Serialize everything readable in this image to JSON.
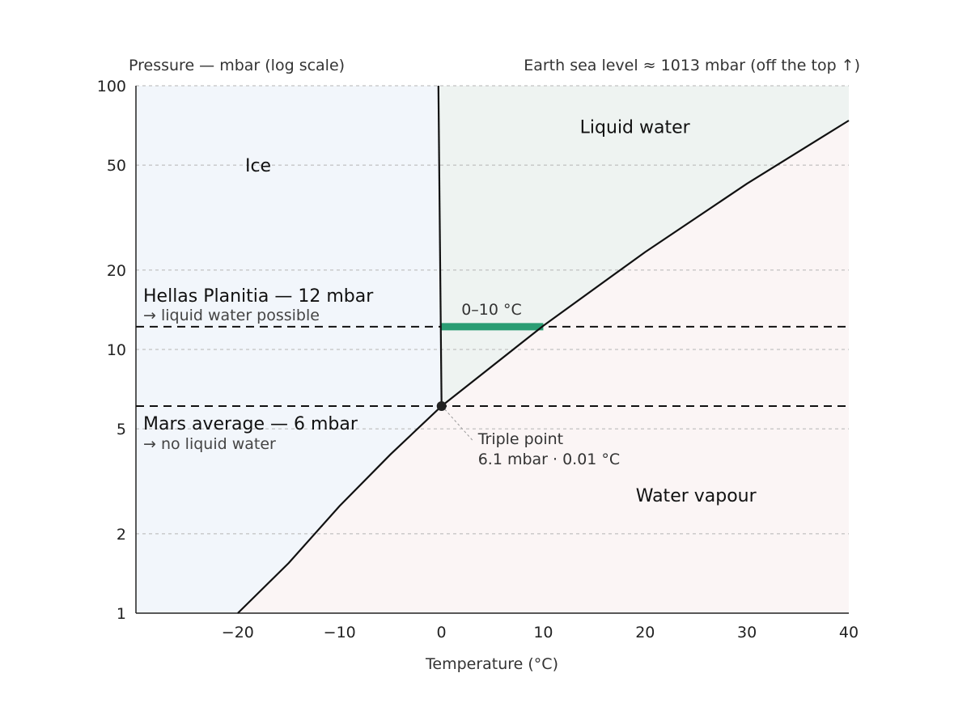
{
  "chart_data": {
    "type": "line",
    "subtype": "phase-diagram",
    "title": "",
    "xlabel": "Temperature (°C)",
    "ylabel": "Pressure — mbar (log scale)",
    "top_right_note": "Earth sea level ≈ 1013 mbar (off the top ↑)",
    "xlim": [
      -30,
      40
    ],
    "ylim": [
      1,
      100
    ],
    "yscale": "log",
    "x_ticks": [
      {
        "value": -20,
        "label": "−20"
      },
      {
        "value": -10,
        "label": "−10"
      },
      {
        "value": 0,
        "label": "0"
      },
      {
        "value": 10,
        "label": "10"
      },
      {
        "value": 20,
        "label": "20"
      },
      {
        "value": 30,
        "label": "30"
      },
      {
        "value": 40,
        "label": "40"
      }
    ],
    "y_ticks": [
      {
        "value": 1,
        "label": "1"
      },
      {
        "value": 2,
        "label": "2"
      },
      {
        "value": 5,
        "label": "5"
      },
      {
        "value": 10,
        "label": "10"
      },
      {
        "value": 20,
        "label": "20"
      },
      {
        "value": 50,
        "label": "50"
      },
      {
        "value": 100,
        "label": "100"
      }
    ],
    "grid": "horizontal dashed at y ticks",
    "regions": [
      {
        "label": "Ice",
        "x": -18,
        "y": 50,
        "color": "#f2f6fb"
      },
      {
        "label": "Liquid water",
        "x": 19,
        "y": 70,
        "color": "#eef3f1"
      },
      {
        "label": "Water vapour",
        "x": 25,
        "y": 2.8,
        "color": "#fbf5f5"
      }
    ],
    "curves": [
      {
        "name": "melting",
        "points": [
          [
            -0.3,
            100
          ],
          [
            0.01,
            6.1
          ]
        ]
      },
      {
        "name": "boiling",
        "points": [
          [
            0.01,
            6.1
          ],
          [
            10,
            12.3
          ],
          [
            20,
            23.4
          ],
          [
            30,
            42.5
          ],
          [
            40,
            73.8
          ]
        ]
      },
      {
        "name": "sublimation",
        "points": [
          [
            -20,
            1.0
          ],
          [
            -15,
            1.55
          ],
          [
            -10,
            2.55
          ],
          [
            -5,
            4.0
          ],
          [
            0.01,
            6.1
          ]
        ]
      }
    ],
    "reference_lines": [
      {
        "label": "Hellas Planitia — 12 mbar",
        "sublabel": "→ liquid water possible",
        "y": 12.2
      },
      {
        "label": "Mars average — 6 mbar",
        "sublabel": "→ no liquid water",
        "y": 6.1
      }
    ],
    "highlight": {
      "label": "0–10 °C",
      "x_range": [
        0,
        10
      ],
      "y": 12.2,
      "color": "#2a9d73"
    },
    "triple_point": {
      "label": "Triple point",
      "sublabel": "6.1 mbar · 0.01 °C",
      "x": 0.01,
      "y": 6.1
    }
  }
}
